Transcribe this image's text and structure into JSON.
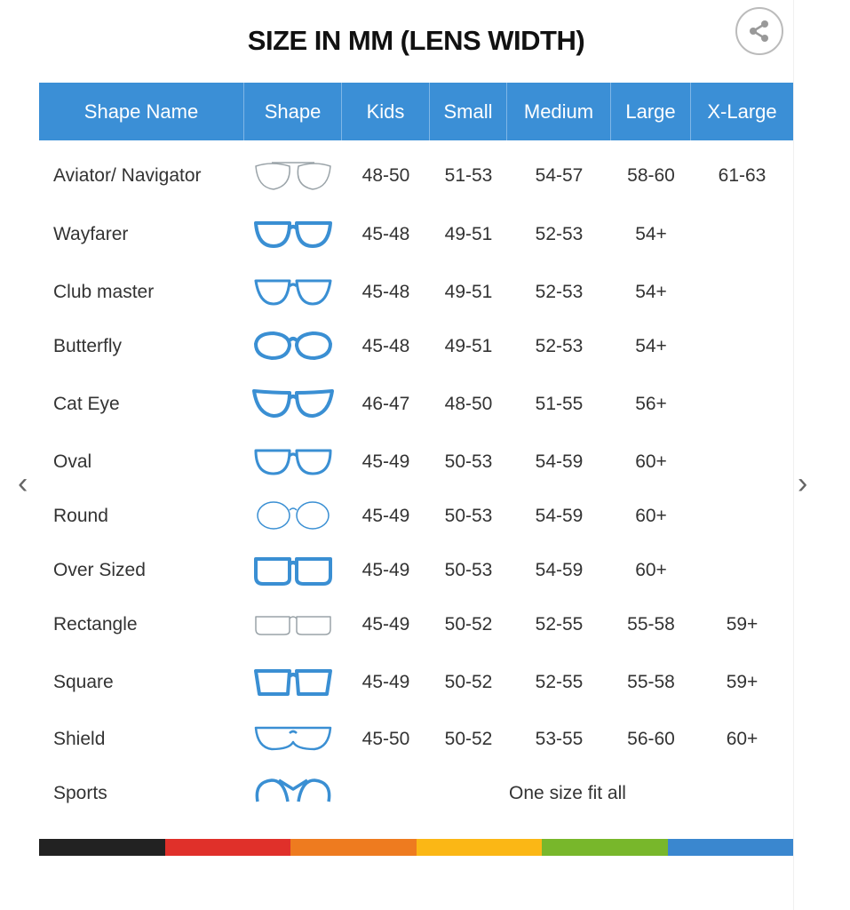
{
  "title": "SIZE IN MM (LENS WIDTH)",
  "share_icon": "share-icon",
  "nav": {
    "prev_icon": "chevron-left-icon",
    "next_icon": "chevron-right-icon"
  },
  "colors": {
    "header": "#3b8fd6",
    "frame_blue": "#3a8fd3",
    "frame_gray": "#9aa3a8",
    "stripe": [
      "#222222",
      "#e0302a",
      "#ee7b1f",
      "#fbb715",
      "#78b72b",
      "#3a87cf"
    ]
  },
  "table": {
    "headers": [
      "Shape Name",
      "Shape",
      "Kids",
      "Small",
      "Medium",
      "Large",
      "X-Large"
    ],
    "rows": [
      {
        "name": "Aviator/ Navigator",
        "icon": "aviator-glasses-icon",
        "sizes": [
          "48-50",
          "51-53",
          "54-57",
          "58-60",
          "61-63"
        ]
      },
      {
        "name": "Wayfarer",
        "icon": "wayfarer-glasses-icon",
        "sizes": [
          "45-48",
          "49-51",
          "52-53",
          "54+",
          ""
        ]
      },
      {
        "name": "Club master",
        "icon": "clubmaster-glasses-icon",
        "sizes": [
          "45-48",
          "49-51",
          "52-53",
          "54+",
          ""
        ]
      },
      {
        "name": "Butterfly",
        "icon": "butterfly-glasses-icon",
        "sizes": [
          "45-48",
          "49-51",
          "52-53",
          "54+",
          ""
        ]
      },
      {
        "name": "Cat Eye",
        "icon": "cat-eye-glasses-icon",
        "sizes": [
          "46-47",
          "48-50",
          "51-55",
          "56+",
          ""
        ]
      },
      {
        "name": "Oval",
        "icon": "oval-glasses-icon",
        "sizes": [
          "45-49",
          "50-53",
          "54-59",
          "60+",
          ""
        ]
      },
      {
        "name": "Round",
        "icon": "round-glasses-icon",
        "sizes": [
          "45-49",
          "50-53",
          "54-59",
          "60+",
          ""
        ]
      },
      {
        "name": "Over Sized",
        "icon": "oversized-glasses-icon",
        "sizes": [
          "45-49",
          "50-53",
          "54-59",
          "60+",
          ""
        ]
      },
      {
        "name": "Rectangle",
        "icon": "rectangle-glasses-icon",
        "sizes": [
          "45-49",
          "50-52",
          "52-55",
          "55-58",
          "59+"
        ]
      },
      {
        "name": "Square",
        "icon": "square-glasses-icon",
        "sizes": [
          "45-49",
          "50-52",
          "52-55",
          "55-58",
          "59+"
        ]
      },
      {
        "name": "Shield",
        "icon": "shield-glasses-icon",
        "sizes": [
          "45-50",
          "50-52",
          "53-55",
          "56-60",
          "60+"
        ]
      },
      {
        "name": "Sports",
        "icon": "sports-glasses-icon",
        "span_text": "One size fit all"
      }
    ]
  }
}
